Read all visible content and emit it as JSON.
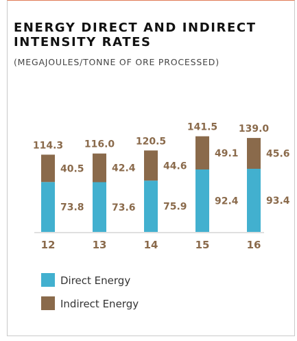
{
  "title": "ENERGY DIRECT AND INDIRECT INTENSITY RATES",
  "subtitle": "(MEGAJOULES/TONNE OF ORE PROCESSED)",
  "colors": {
    "direct": "#42b0cf",
    "indirect": "#8a6a4b",
    "label": "#8a6a4b",
    "axis": "#bfbfbf"
  },
  "chart_data": {
    "type": "bar",
    "stacked": true,
    "categories": [
      "12",
      "13",
      "14",
      "15",
      "16"
    ],
    "series": [
      {
        "name": "Direct Energy",
        "values": [
          73.8,
          73.6,
          75.9,
          92.4,
          93.4
        ]
      },
      {
        "name": "Indirect Energy",
        "values": [
          40.5,
          42.4,
          44.6,
          49.1,
          45.6
        ]
      }
    ],
    "totals": [
      "114.3",
      "116.0",
      "120.5",
      "141.5",
      "139.0"
    ],
    "direct_labels": [
      "73.8",
      "73.6",
      "75.9",
      "92.4",
      "93.4"
    ],
    "indirect_labels": [
      "40.5",
      "42.4",
      "44.6",
      "49.1",
      "45.6"
    ],
    "legend_position": "bottom-left",
    "grid": false
  }
}
